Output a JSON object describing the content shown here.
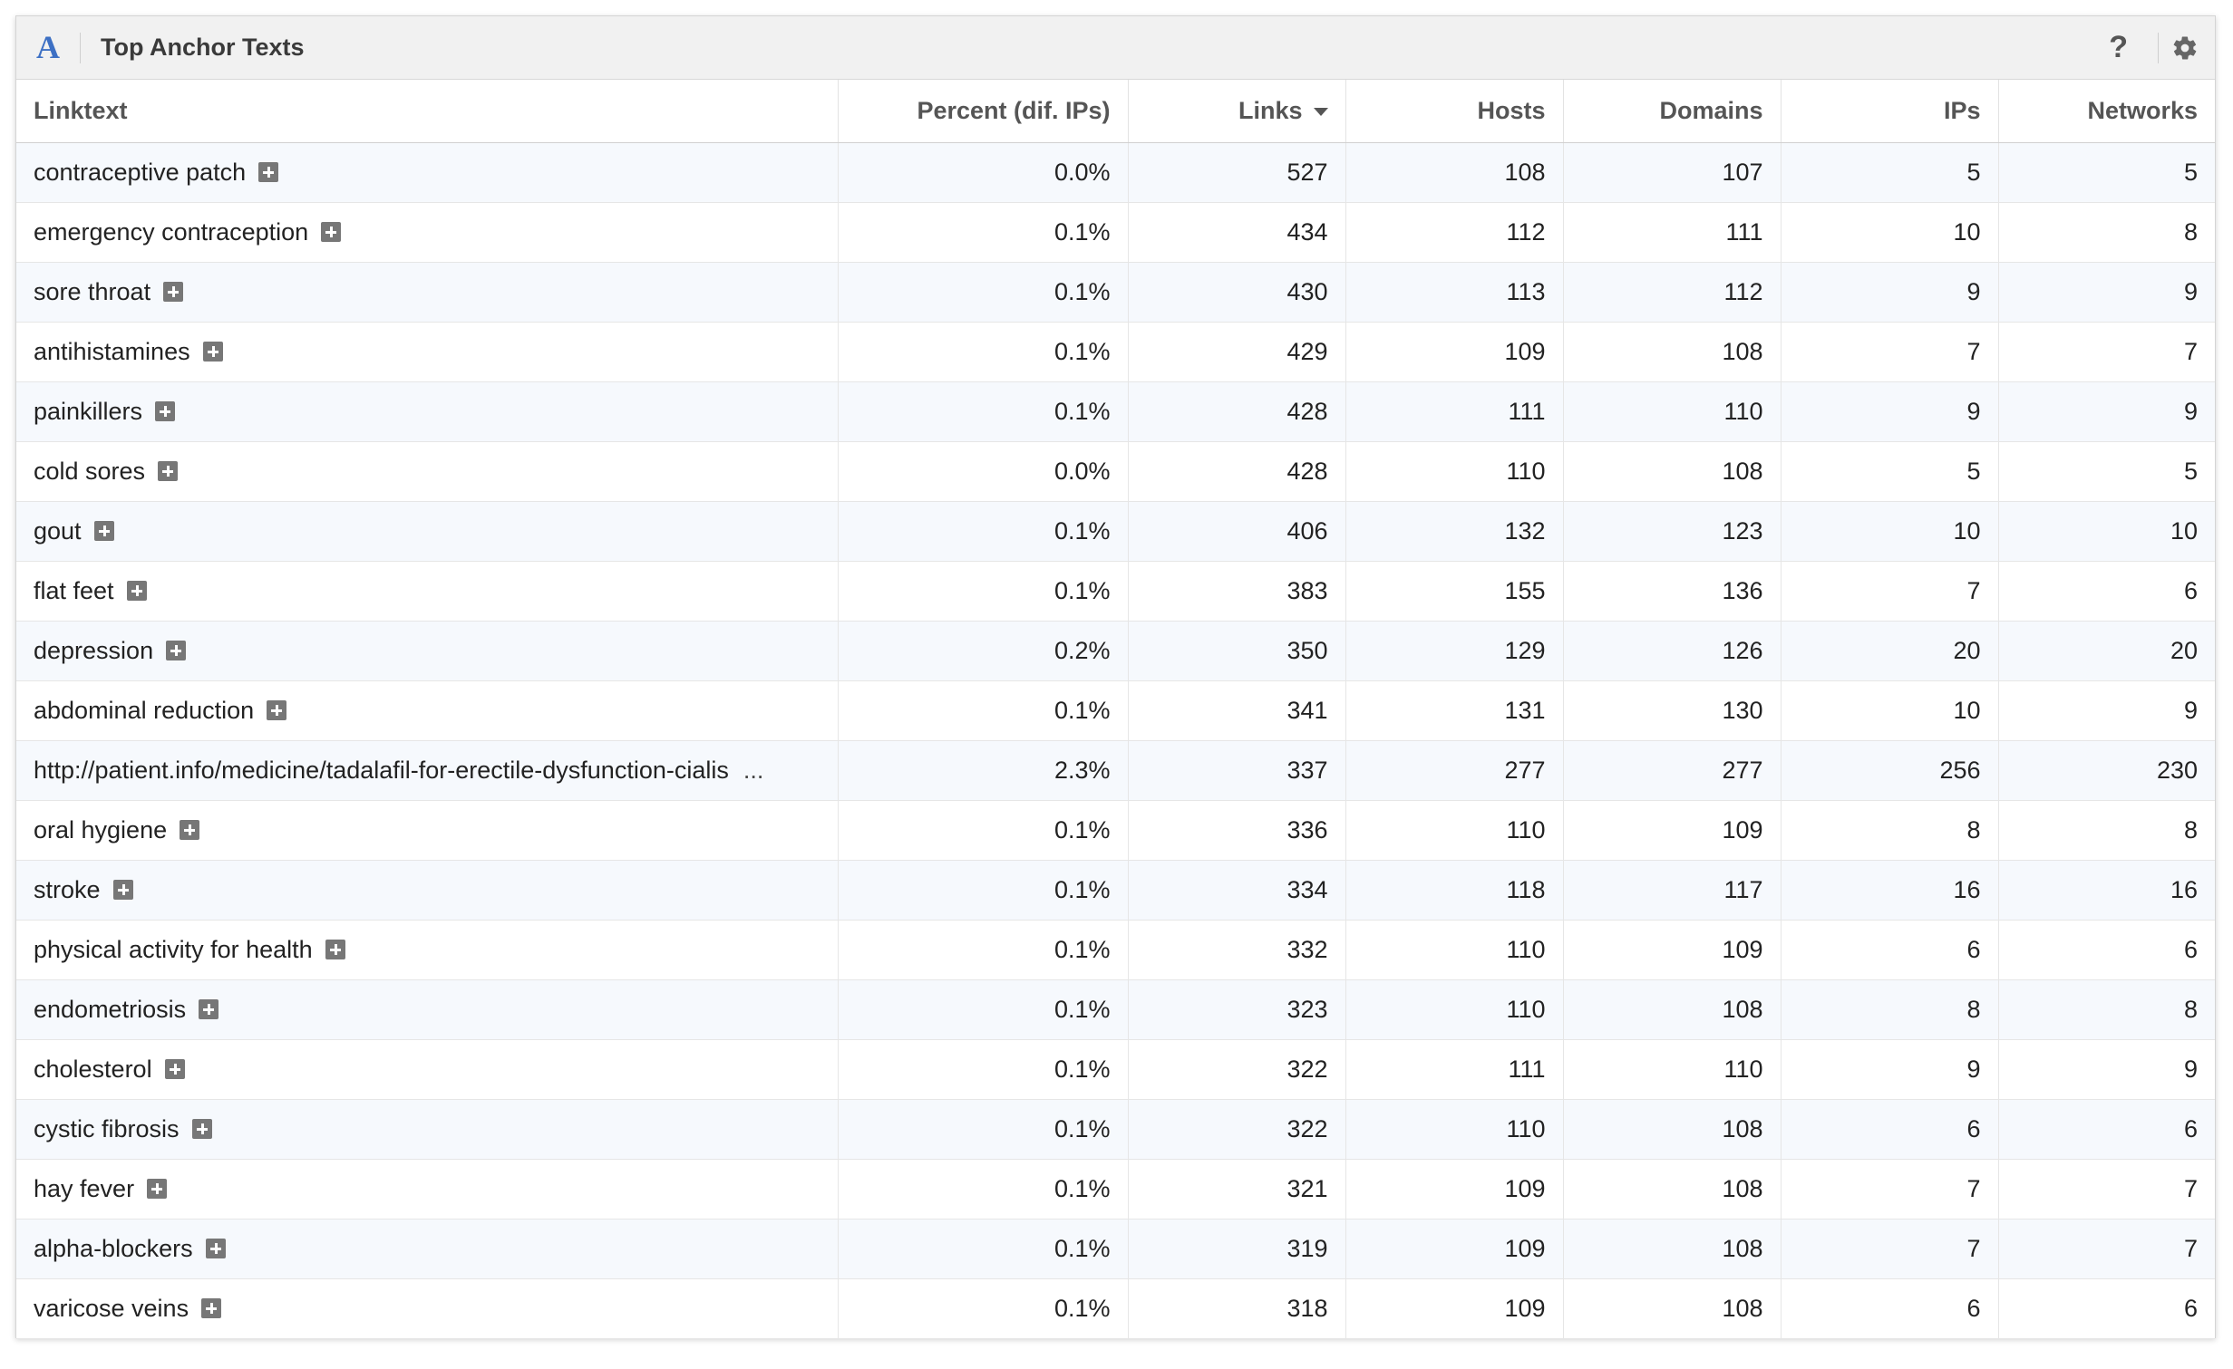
{
  "widget": {
    "logo": "A",
    "title": "Top Anchor Texts",
    "help": "?",
    "icons": {
      "logo": "majestic-a-logo",
      "help": "question-mark-icon",
      "settings": "gear-icon",
      "expand": "plus-box-icon",
      "sort": "sort-desc-icon"
    }
  },
  "table": {
    "headers": {
      "linktext": "Linktext",
      "percent": "Percent (dif. IPs)",
      "links": "Links",
      "hosts": "Hosts",
      "domains": "Domains",
      "ips": "IPs",
      "networks": "Networks"
    },
    "sorted_by": "links",
    "rows": [
      {
        "text": "contraceptive patch",
        "percent": "0.0%",
        "links": "527",
        "hosts": "108",
        "domains": "107",
        "ips": "5",
        "networks": "5",
        "ellipsis": ""
      },
      {
        "text": "emergency contraception",
        "percent": "0.1%",
        "links": "434",
        "hosts": "112",
        "domains": "111",
        "ips": "10",
        "networks": "8",
        "ellipsis": ""
      },
      {
        "text": "sore throat",
        "percent": "0.1%",
        "links": "430",
        "hosts": "113",
        "domains": "112",
        "ips": "9",
        "networks": "9",
        "ellipsis": ""
      },
      {
        "text": "antihistamines",
        "percent": "0.1%",
        "links": "429",
        "hosts": "109",
        "domains": "108",
        "ips": "7",
        "networks": "7",
        "ellipsis": ""
      },
      {
        "text": "painkillers",
        "percent": "0.1%",
        "links": "428",
        "hosts": "111",
        "domains": "110",
        "ips": "9",
        "networks": "9",
        "ellipsis": ""
      },
      {
        "text": "cold sores",
        "percent": "0.0%",
        "links": "428",
        "hosts": "110",
        "domains": "108",
        "ips": "5",
        "networks": "5",
        "ellipsis": ""
      },
      {
        "text": "gout",
        "percent": "0.1%",
        "links": "406",
        "hosts": "132",
        "domains": "123",
        "ips": "10",
        "networks": "10",
        "ellipsis": ""
      },
      {
        "text": "flat feet",
        "percent": "0.1%",
        "links": "383",
        "hosts": "155",
        "domains": "136",
        "ips": "7",
        "networks": "6",
        "ellipsis": ""
      },
      {
        "text": "depression",
        "percent": "0.2%",
        "links": "350",
        "hosts": "129",
        "domains": "126",
        "ips": "20",
        "networks": "20",
        "ellipsis": ""
      },
      {
        "text": "abdominal reduction",
        "percent": "0.1%",
        "links": "341",
        "hosts": "131",
        "domains": "130",
        "ips": "10",
        "networks": "9",
        "ellipsis": ""
      },
      {
        "text": "http://patient.info/medicine/tadalafil-for-erectile-dysfunction-cialis",
        "percent": "2.3%",
        "links": "337",
        "hosts": "277",
        "domains": "277",
        "ips": "256",
        "networks": "230",
        "ellipsis": "..."
      },
      {
        "text": "oral hygiene",
        "percent": "0.1%",
        "links": "336",
        "hosts": "110",
        "domains": "109",
        "ips": "8",
        "networks": "8",
        "ellipsis": ""
      },
      {
        "text": "stroke",
        "percent": "0.1%",
        "links": "334",
        "hosts": "118",
        "domains": "117",
        "ips": "16",
        "networks": "16",
        "ellipsis": ""
      },
      {
        "text": "physical activity for health",
        "percent": "0.1%",
        "links": "332",
        "hosts": "110",
        "domains": "109",
        "ips": "6",
        "networks": "6",
        "ellipsis": ""
      },
      {
        "text": "endometriosis",
        "percent": "0.1%",
        "links": "323",
        "hosts": "110",
        "domains": "108",
        "ips": "8",
        "networks": "8",
        "ellipsis": ""
      },
      {
        "text": "cholesterol",
        "percent": "0.1%",
        "links": "322",
        "hosts": "111",
        "domains": "110",
        "ips": "9",
        "networks": "9",
        "ellipsis": ""
      },
      {
        "text": "cystic fibrosis",
        "percent": "0.1%",
        "links": "322",
        "hosts": "110",
        "domains": "108",
        "ips": "6",
        "networks": "6",
        "ellipsis": ""
      },
      {
        "text": "hay fever",
        "percent": "0.1%",
        "links": "321",
        "hosts": "109",
        "domains": "108",
        "ips": "7",
        "networks": "7",
        "ellipsis": ""
      },
      {
        "text": "alpha-blockers",
        "percent": "0.1%",
        "links": "319",
        "hosts": "109",
        "domains": "108",
        "ips": "7",
        "networks": "7",
        "ellipsis": ""
      },
      {
        "text": "varicose veins",
        "percent": "0.1%",
        "links": "318",
        "hosts": "109",
        "domains": "108",
        "ips": "6",
        "networks": "6",
        "ellipsis": ""
      }
    ]
  }
}
